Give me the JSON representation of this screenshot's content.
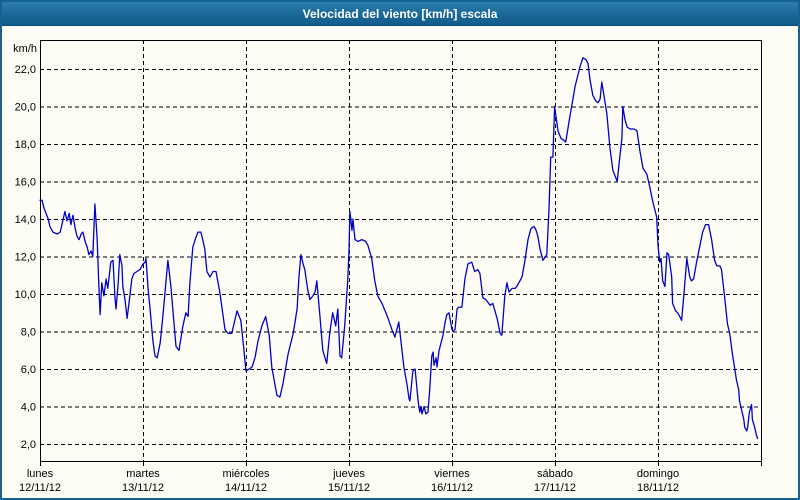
{
  "window": {
    "title": "Velocidad del viento [km/h] escala"
  },
  "colors": {
    "titlebar_blue": "#1a6898",
    "window_border": "#16618f",
    "background": "#fdfdf6",
    "grid": "#000000",
    "line": "#0000cc",
    "title_text": "#ffffff"
  },
  "chart_data": {
    "type": "line",
    "title": "Velocidad del viento [km/h] escala",
    "ylabel": "km/h",
    "xlabel": "",
    "ylim": [
      1.1,
      23.5
    ],
    "grid": "dashed",
    "legend": "none",
    "y_ticks": [
      2,
      4,
      6,
      8,
      10,
      12,
      14,
      16,
      18,
      20,
      22
    ],
    "y_tick_labels": [
      "2,0",
      "4,0",
      "6,0",
      "8,0",
      "10,0",
      "12,0",
      "14,0",
      "16,0",
      "18,0",
      "20,0",
      "22,0"
    ],
    "x_days": [
      {
        "name": "lunes",
        "date": "12/11/12"
      },
      {
        "name": "martes",
        "date": "13/11/12"
      },
      {
        "name": "miércoles",
        "date": "14/11/12"
      },
      {
        "name": "jueves",
        "date": "15/11/12"
      },
      {
        "name": "viernes",
        "date": "16/11/12"
      },
      {
        "name": "sábado",
        "date": "17/11/12"
      },
      {
        "name": "domingo",
        "date": "18/11/12"
      }
    ],
    "x_unit": "hours (0 = lunes 12/11/12 00:00, 168 = end of domingo 18/11/12)",
    "x_range": [
      0,
      168
    ],
    "series": [
      {
        "name": "Velocidad del viento",
        "unit": "km/h",
        "points": [
          [
            0,
            15.0
          ],
          [
            0.5,
            15.0
          ],
          [
            0.9,
            14.6
          ],
          [
            1.9,
            14.0
          ],
          [
            2.3,
            13.6
          ],
          [
            3,
            13.3
          ],
          [
            4,
            13.2
          ],
          [
            4.7,
            13.3
          ],
          [
            5.4,
            14.0
          ],
          [
            5.8,
            14.4
          ],
          [
            6.3,
            13.9
          ],
          [
            6.8,
            14.3
          ],
          [
            7.2,
            13.7
          ],
          [
            7.7,
            14.2
          ],
          [
            8.2,
            13.5
          ],
          [
            8.6,
            13.1
          ],
          [
            9.1,
            12.9
          ],
          [
            9.6,
            13.2
          ],
          [
            10,
            13.3
          ],
          [
            10.5,
            12.8
          ],
          [
            11,
            12.5
          ],
          [
            11.4,
            12.1
          ],
          [
            11.9,
            12.3
          ],
          [
            12.3,
            12.0
          ],
          [
            12.8,
            14.8
          ],
          [
            13.3,
            13.0
          ],
          [
            13.7,
            10.5
          ],
          [
            14,
            8.9
          ],
          [
            14.4,
            10.6
          ],
          [
            14.9,
            9.9
          ],
          [
            15.4,
            10.8
          ],
          [
            15.8,
            10.3
          ],
          [
            16.5,
            11.7
          ],
          [
            17,
            11.8
          ],
          [
            17.5,
            9.7
          ],
          [
            17.7,
            9.2
          ],
          [
            18.2,
            10.5
          ],
          [
            18.6,
            12.1
          ],
          [
            19.1,
            11.5
          ],
          [
            19.3,
            10.4
          ],
          [
            19.8,
            9.7
          ],
          [
            20.3,
            8.7
          ],
          [
            21,
            10.0
          ],
          [
            21.4,
            10.8
          ],
          [
            21.9,
            11.1
          ],
          [
            22.6,
            11.2
          ],
          [
            23.3,
            11.3
          ],
          [
            24,
            11.6
          ],
          [
            24.5,
            11.7
          ],
          [
            24.7,
            11.9
          ],
          [
            25.2,
            10.2
          ],
          [
            25.6,
            9.3
          ],
          [
            26.3,
            7.5
          ],
          [
            26.8,
            6.7
          ],
          [
            27.3,
            6.6
          ],
          [
            28,
            7.4
          ],
          [
            28.7,
            9.0
          ],
          [
            29.4,
            10.8
          ],
          [
            29.8,
            11.8
          ],
          [
            30.5,
            10.4
          ],
          [
            31.2,
            8.5
          ],
          [
            31.7,
            7.2
          ],
          [
            32.4,
            7.0
          ],
          [
            33.3,
            8.3
          ],
          [
            34,
            9.0
          ],
          [
            34.5,
            8.8
          ],
          [
            34.9,
            10.5
          ],
          [
            35.6,
            12.5
          ],
          [
            36.3,
            13.0
          ],
          [
            36.8,
            13.3
          ],
          [
            37.5,
            13.3
          ],
          [
            37.9,
            12.9
          ],
          [
            38.4,
            12.4
          ],
          [
            38.9,
            11.2
          ],
          [
            39.6,
            10.9
          ],
          [
            40.3,
            11.2
          ],
          [
            41,
            11.2
          ],
          [
            41.9,
            10.1
          ],
          [
            43.1,
            8.1
          ],
          [
            43.8,
            7.9
          ],
          [
            44.7,
            7.9
          ],
          [
            45.9,
            9.1
          ],
          [
            46.8,
            8.6
          ],
          [
            47.3,
            7.5
          ],
          [
            48,
            5.9
          ],
          [
            48.7,
            6.0
          ],
          [
            49.4,
            6.1
          ],
          [
            50.1,
            6.6
          ],
          [
            50.8,
            7.5
          ],
          [
            51.7,
            8.3
          ],
          [
            52.6,
            8.8
          ],
          [
            53.4,
            7.8
          ],
          [
            54,
            6.1
          ],
          [
            55.2,
            4.6
          ],
          [
            55.9,
            4.5
          ],
          [
            56.6,
            5.2
          ],
          [
            57.8,
            6.8
          ],
          [
            59,
            7.9
          ],
          [
            59.9,
            9.2
          ],
          [
            60.3,
            10.8
          ],
          [
            60.8,
            12.1
          ],
          [
            61.3,
            11.6
          ],
          [
            61.7,
            11.3
          ],
          [
            62.4,
            10.2
          ],
          [
            62.9,
            9.7
          ],
          [
            63.6,
            9.9
          ],
          [
            64.1,
            10.1
          ],
          [
            64.5,
            10.7
          ],
          [
            65.2,
            8.9
          ],
          [
            65.9,
            7.0
          ],
          [
            66.8,
            6.3
          ],
          [
            67.5,
            7.9
          ],
          [
            68.2,
            9.0
          ],
          [
            68.9,
            8.3
          ],
          [
            69.4,
            9.2
          ],
          [
            69.9,
            6.7
          ],
          [
            70.3,
            6.6
          ],
          [
            71,
            8.3
          ],
          [
            71.7,
            10.7
          ],
          [
            72,
            12.3
          ],
          [
            72.2,
            14.4
          ],
          [
            72.7,
            13.4
          ],
          [
            72.9,
            14.0
          ],
          [
            73.4,
            12.9
          ],
          [
            74.1,
            12.8
          ],
          [
            75,
            12.9
          ],
          [
            75.9,
            12.8
          ],
          [
            76.4,
            12.6
          ],
          [
            77.3,
            11.9
          ],
          [
            78,
            10.7
          ],
          [
            78.7,
            9.9
          ],
          [
            79.7,
            9.5
          ],
          [
            80.4,
            9.1
          ],
          [
            81.1,
            8.7
          ],
          [
            82,
            8.1
          ],
          [
            82.7,
            7.7
          ],
          [
            83.6,
            8.5
          ],
          [
            84.1,
            7.5
          ],
          [
            84.8,
            6.1
          ],
          [
            85.5,
            5.2
          ],
          [
            86,
            4.4
          ],
          [
            86.2,
            4.3
          ],
          [
            86.9,
            5.9
          ],
          [
            87.4,
            6.0
          ],
          [
            88.1,
            4.3
          ],
          [
            88.5,
            3.7
          ],
          [
            88.8,
            4.0
          ],
          [
            89,
            3.6
          ],
          [
            89.5,
            4.0
          ],
          [
            89.9,
            3.6
          ],
          [
            90.4,
            3.7
          ],
          [
            90.8,
            4.9
          ],
          [
            91.3,
            6.7
          ],
          [
            91.6,
            6.9
          ],
          [
            91.8,
            6.2
          ],
          [
            92.3,
            6.6
          ],
          [
            92.5,
            6.1
          ],
          [
            93,
            7.0
          ],
          [
            93.9,
            7.8
          ],
          [
            94.4,
            8.5
          ],
          [
            94.8,
            8.9
          ],
          [
            95.3,
            9.0
          ],
          [
            96,
            8.1
          ],
          [
            96.2,
            8.0
          ],
          [
            96.7,
            8.1
          ],
          [
            97.2,
            9.2
          ],
          [
            97.6,
            9.3
          ],
          [
            98.3,
            9.3
          ],
          [
            99,
            10.8
          ],
          [
            99.7,
            11.6
          ],
          [
            100.6,
            11.7
          ],
          [
            101.3,
            11.2
          ],
          [
            102,
            11.3
          ],
          [
            102.5,
            11.1
          ],
          [
            103.2,
            9.8
          ],
          [
            103.9,
            9.7
          ],
          [
            104.9,
            9.4
          ],
          [
            105.5,
            9.5
          ],
          [
            106.5,
            8.7
          ],
          [
            107.2,
            7.9
          ],
          [
            107.6,
            7.8
          ],
          [
            108.3,
            9.9
          ],
          [
            108.8,
            10.6
          ],
          [
            109.3,
            10.1
          ],
          [
            110,
            10.3
          ],
          [
            110.7,
            10.3
          ],
          [
            111.1,
            10.4
          ],
          [
            112.3,
            10.9
          ],
          [
            113,
            11.8
          ],
          [
            113.7,
            12.9
          ],
          [
            114.4,
            13.5
          ],
          [
            115.1,
            13.6
          ],
          [
            115.6,
            13.4
          ],
          [
            116,
            13.1
          ],
          [
            116.5,
            12.4
          ],
          [
            117.2,
            11.8
          ],
          [
            118.1,
            12.1
          ],
          [
            118.6,
            14.5
          ],
          [
            119,
            17.3
          ],
          [
            119.5,
            17.3
          ],
          [
            119.9,
            20.0
          ],
          [
            120.7,
            18.7
          ],
          [
            121.4,
            18.3
          ],
          [
            122.1,
            18.2
          ],
          [
            122.5,
            18.1
          ],
          [
            123.5,
            19.5
          ],
          [
            124.7,
            21.1
          ],
          [
            125.8,
            22.1
          ],
          [
            126.5,
            22.6
          ],
          [
            127.2,
            22.5
          ],
          [
            127.7,
            22.3
          ],
          [
            128.1,
            21.5
          ],
          [
            128.8,
            20.6
          ],
          [
            129.5,
            20.3
          ],
          [
            130,
            20.2
          ],
          [
            130.5,
            20.4
          ],
          [
            130.9,
            21.3
          ],
          [
            131.6,
            20.3
          ],
          [
            132.1,
            19.6
          ],
          [
            132.8,
            17.8
          ],
          [
            133.5,
            16.6
          ],
          [
            134.5,
            16.0
          ],
          [
            135.1,
            17.3
          ],
          [
            135.6,
            18.3
          ],
          [
            135.8,
            20.0
          ],
          [
            136.3,
            19.3
          ],
          [
            136.8,
            18.9
          ],
          [
            137.5,
            18.8
          ],
          [
            138.4,
            18.8
          ],
          [
            139.1,
            18.7
          ],
          [
            139.8,
            17.6
          ],
          [
            140.5,
            16.7
          ],
          [
            141.4,
            16.4
          ],
          [
            142.1,
            15.7
          ],
          [
            142.8,
            14.9
          ],
          [
            143.7,
            14.1
          ],
          [
            144,
            12.6
          ],
          [
            144.4,
            11.7
          ],
          [
            144.7,
            11.9
          ],
          [
            145.1,
            10.7
          ],
          [
            145.6,
            10.4
          ],
          [
            146.1,
            12.2
          ],
          [
            146.5,
            12.1
          ],
          [
            147.2,
            10.9
          ],
          [
            147.4,
            9.5
          ],
          [
            148.1,
            9.1
          ],
          [
            148.6,
            9.0
          ],
          [
            149.3,
            8.7
          ],
          [
            149.5,
            8.6
          ],
          [
            150,
            9.9
          ],
          [
            150.7,
            11.9
          ],
          [
            151.4,
            10.9
          ],
          [
            151.8,
            10.7
          ],
          [
            152.3,
            10.8
          ],
          [
            153,
            11.7
          ],
          [
            153.7,
            12.5
          ],
          [
            154.4,
            13.3
          ],
          [
            155.1,
            13.7
          ],
          [
            155.8,
            13.7
          ],
          [
            156.5,
            12.9
          ],
          [
            157.2,
            11.8
          ],
          [
            157.7,
            11.5
          ],
          [
            158.4,
            11.5
          ],
          [
            158.8,
            11.3
          ],
          [
            159.5,
            9.9
          ],
          [
            160.2,
            8.4
          ],
          [
            160.7,
            7.9
          ],
          [
            161.4,
            6.7
          ],
          [
            161.9,
            6.0
          ],
          [
            162.3,
            5.4
          ],
          [
            162.8,
            4.9
          ],
          [
            163,
            4.3
          ],
          [
            163.5,
            3.8
          ],
          [
            164,
            3.3
          ],
          [
            164.2,
            2.9
          ],
          [
            164.7,
            2.7
          ],
          [
            164.9,
            2.9
          ],
          [
            165.3,
            3.7
          ],
          [
            165.8,
            4.1
          ],
          [
            166,
            3.3
          ],
          [
            166.5,
            2.9
          ],
          [
            166.9,
            2.5
          ],
          [
            167.2,
            2.3
          ]
        ]
      }
    ]
  }
}
